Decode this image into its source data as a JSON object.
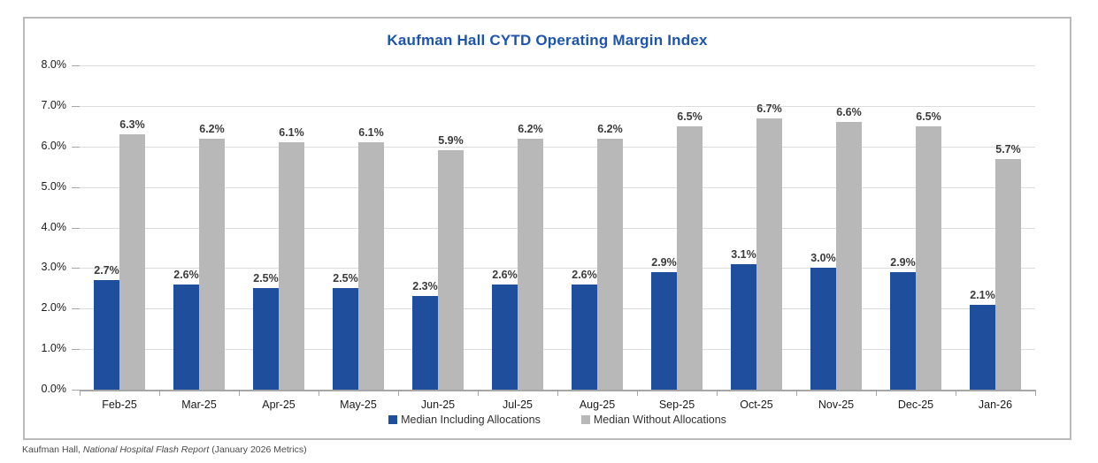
{
  "footer": {
    "prefix": "Kaufman Hall, ",
    "italic": "National Hospital Flash Report",
    "suffix": " (January 2026 Metrics)"
  },
  "chart_data": {
    "type": "bar",
    "title": "Kaufman Hall CYTD Operating Margin Index",
    "title_color": "#1d54ae",
    "categories": [
      "Feb-25",
      "Mar-25",
      "Apr-25",
      "May-25",
      "Jun-25",
      "Jul-25",
      "Aug-25",
      "Sep-25",
      "Oct-25",
      "Nov-25",
      "Dec-25",
      "Jan-26"
    ],
    "series": [
      {
        "name": "Median Including Allocations",
        "color": "#1e4e9c",
        "values": [
          2.7,
          2.6,
          2.5,
          2.5,
          2.3,
          2.6,
          2.6,
          2.9,
          3.1,
          3.0,
          2.9,
          2.1
        ],
        "labels": [
          "2.7%",
          "2.6%",
          "2.5%",
          "2.5%",
          "2.3%",
          "2.6%",
          "2.6%",
          "2.9%",
          "3.1%",
          "3.0%",
          "2.9%",
          "2.1%"
        ]
      },
      {
        "name": "Median Without Allocations",
        "color": "#b8b8b8",
        "values": [
          6.3,
          6.2,
          6.1,
          6.1,
          5.9,
          6.2,
          6.2,
          6.5,
          6.7,
          6.6,
          6.5,
          5.7
        ],
        "labels": [
          "6.3%",
          "6.2%",
          "6.1%",
          "6.1%",
          "5.9%",
          "6.2%",
          "6.2%",
          "6.5%",
          "6.7%",
          "6.6%",
          "6.5%",
          "5.7%"
        ]
      }
    ],
    "ylim": [
      0,
      8
    ],
    "y_ticks": [
      {
        "value": 0,
        "label": "0.0%"
      },
      {
        "value": 1,
        "label": "1.0%"
      },
      {
        "value": 2,
        "label": "2.0%"
      },
      {
        "value": 3,
        "label": "3.0%"
      },
      {
        "value": 4,
        "label": "4.0%"
      },
      {
        "value": 5,
        "label": "5.0%"
      },
      {
        "value": 6,
        "label": "6.0%"
      },
      {
        "value": 7,
        "label": "7.0%"
      },
      {
        "value": 8,
        "label": "8.0%"
      }
    ],
    "grid": true,
    "legend_position": "bottom"
  }
}
